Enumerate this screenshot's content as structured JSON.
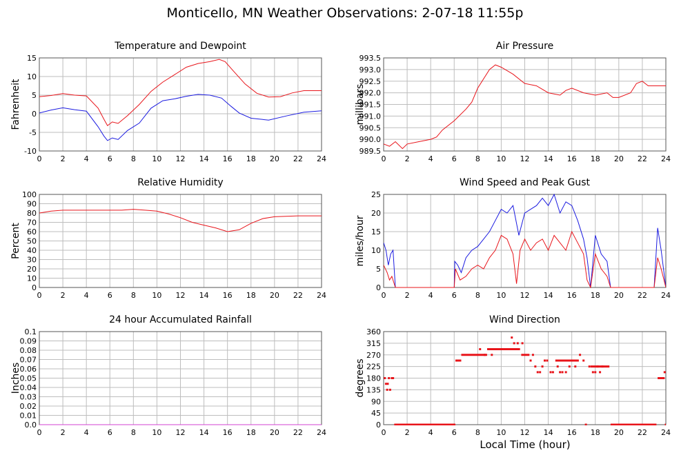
{
  "page": {
    "title": "Monticello, MN Weather Observations: 2-07-18 11:55p",
    "x_caption": "Local Time (hour)"
  },
  "colors": {
    "red": "#e8141a",
    "blue": "#1a1ae0",
    "grid": "#bdbdbd",
    "magenta": "#d040d0"
  },
  "chart_data": [
    {
      "id": "temp",
      "type": "line",
      "title": "Temperature and Dewpoint",
      "ylabel": "Fahrenheit",
      "xlim": [
        0,
        24
      ],
      "ylim": [
        -10,
        15
      ],
      "xticks": [
        0,
        2,
        4,
        6,
        8,
        10,
        12,
        14,
        16,
        18,
        20,
        22,
        24
      ],
      "yticks": [
        -10,
        -5,
        0,
        5,
        10,
        15
      ],
      "grid": true,
      "series": [
        {
          "color": "red",
          "x": [
            0,
            1,
            2,
            3,
            4,
            5,
            5.5,
            5.8,
            6.2,
            6.7,
            7.5,
            8.5,
            9.5,
            10.5,
            11.5,
            12.5,
            13.5,
            14.5,
            15.3,
            15.8,
            16.5,
            17.5,
            18.5,
            19.5,
            20.5,
            21.5,
            22.5,
            24
          ],
          "y": [
            4.6,
            4.9,
            5.4,
            5,
            4.8,
            1.5,
            -1.5,
            -3.2,
            -2.2,
            -2.6,
            -0.5,
            2.5,
            6,
            8.5,
            10.5,
            12.5,
            13.5,
            14,
            14.6,
            14,
            11.5,
            8,
            5.5,
            4.5,
            4.6,
            5.6,
            6.2,
            6.2
          ]
        },
        {
          "color": "blue",
          "x": [
            0,
            1,
            2,
            3,
            4,
            5,
            5.5,
            5.8,
            6.2,
            6.7,
            7.5,
            8.5,
            9.5,
            10.5,
            11.5,
            12.5,
            13.5,
            14.5,
            15.5,
            16.3,
            17,
            18,
            19.5,
            21,
            22.5,
            24
          ],
          "y": [
            0.2,
            1,
            1.6,
            1.1,
            0.7,
            -3.5,
            -6,
            -7.2,
            -6.5,
            -6.9,
            -4.5,
            -2.5,
            1.5,
            3.5,
            4,
            4.7,
            5.2,
            5,
            4.2,
            2,
            0.2,
            -1.2,
            -1.7,
            -0.6,
            0.4,
            0.8
          ]
        }
      ]
    },
    {
      "id": "pressure",
      "type": "line",
      "title": "Air Pressure",
      "ylabel": "millibars",
      "xlim": [
        0,
        24
      ],
      "ylim": [
        989.5,
        993.5
      ],
      "xticks": [
        0,
        2,
        4,
        6,
        8,
        10,
        12,
        14,
        16,
        18,
        20,
        22,
        24
      ],
      "yticks": [
        "989.5",
        "990.0",
        "990.5",
        "991.0",
        "991.5",
        "992.0",
        "992.5",
        "993.0",
        "993.5"
      ],
      "grid": true,
      "series": [
        {
          "color": "red",
          "x": [
            0,
            0.5,
            1,
            1.6,
            2,
            3,
            4,
            4.5,
            5,
            6,
            7,
            7.5,
            8,
            9,
            9.5,
            10,
            11,
            12,
            13,
            14,
            15,
            15.5,
            16,
            17,
            18,
            19,
            19.5,
            20,
            21,
            21.5,
            22,
            22.5,
            23,
            24
          ],
          "y": [
            989.8,
            989.7,
            989.9,
            989.6,
            989.8,
            989.9,
            990.0,
            990.1,
            990.4,
            990.8,
            991.3,
            991.6,
            992.2,
            993.0,
            993.2,
            993.1,
            992.8,
            992.4,
            992.3,
            992.0,
            991.9,
            992.1,
            992.2,
            992.0,
            991.9,
            992.0,
            991.8,
            991.8,
            992.0,
            992.4,
            992.5,
            992.3,
            992.3,
            992.3
          ]
        }
      ]
    },
    {
      "id": "humidity",
      "type": "line",
      "title": "Relative Humidity",
      "ylabel": "Percent",
      "xlim": [
        0,
        24
      ],
      "ylim": [
        0,
        100
      ],
      "xticks": [
        0,
        2,
        4,
        6,
        8,
        10,
        12,
        14,
        16,
        18,
        20,
        22,
        24
      ],
      "yticks": [
        0,
        10,
        20,
        30,
        40,
        50,
        60,
        70,
        80,
        90,
        100
      ],
      "grid": true,
      "series": [
        {
          "color": "red",
          "x": [
            0,
            1,
            2,
            4,
            6,
            7,
            8,
            9,
            10,
            11,
            12,
            13,
            14,
            15,
            16,
            17,
            18,
            19,
            20,
            22,
            24
          ],
          "y": [
            80,
            82,
            83,
            83,
            83,
            83,
            84,
            83,
            82,
            79,
            75,
            70,
            67,
            64,
            60,
            62,
            69,
            74,
            76,
            77,
            77
          ]
        }
      ]
    },
    {
      "id": "wind",
      "type": "line",
      "title": "Wind Speed and Peak Gust",
      "ylabel": "miles/hour",
      "xlim": [
        0,
        24
      ],
      "ylim": [
        0,
        25
      ],
      "xticks": [
        0,
        2,
        4,
        6,
        8,
        10,
        12,
        14,
        16,
        18,
        20,
        22,
        24
      ],
      "yticks": [
        0,
        5,
        10,
        15,
        20,
        25
      ],
      "grid": true,
      "series": [
        {
          "color": "blue",
          "x": [
            0,
            0.2,
            0.4,
            0.6,
            0.8,
            1,
            6,
            6.05,
            6.3,
            6.6,
            7,
            7.5,
            8,
            8.5,
            9,
            9.5,
            10,
            10.5,
            11,
            11.5,
            12,
            12.5,
            13,
            13.5,
            14,
            14.5,
            15,
            15.5,
            16,
            16.5,
            17,
            17.3,
            17.6,
            18,
            18.5,
            19,
            19.3,
            19.5,
            23,
            23.3,
            23.6,
            24
          ],
          "y": [
            12,
            10,
            6,
            9,
            10,
            0,
            0,
            7,
            6,
            4,
            8,
            10,
            11,
            13,
            15,
            18,
            21,
            20,
            22,
            14,
            20,
            21,
            22,
            24,
            22,
            25,
            20,
            23,
            22,
            18,
            13,
            8,
            0,
            14,
            9,
            7,
            0,
            0,
            0,
            16,
            10,
            0
          ]
        },
        {
          "color": "red",
          "x": [
            0,
            0.3,
            0.5,
            0.7,
            1,
            6,
            6.1,
            6.5,
            7,
            7.5,
            8,
            8.5,
            9,
            9.5,
            10,
            10.5,
            11,
            11.3,
            11.6,
            12,
            12.5,
            13,
            13.5,
            14,
            14.5,
            15,
            15.5,
            16,
            16.5,
            17,
            17.3,
            17.6,
            18,
            18.5,
            19,
            19.3,
            23,
            23.3,
            23.6,
            24
          ],
          "y": [
            6,
            4,
            2,
            3,
            0,
            0,
            5,
            2,
            3,
            5,
            6,
            5,
            8,
            10,
            14,
            13,
            9,
            1,
            10,
            13,
            10,
            12,
            13,
            10,
            14,
            12,
            10,
            15,
            12,
            9,
            2,
            0,
            9,
            5,
            3,
            0,
            0,
            8,
            5,
            0
          ]
        }
      ]
    },
    {
      "id": "rain",
      "type": "line",
      "title": "24 hour Accumulated Rainfall",
      "ylabel": "Inches",
      "xlim": [
        0,
        24
      ],
      "ylim": [
        0,
        0.1
      ],
      "xticks": [
        0,
        2,
        4,
        6,
        8,
        10,
        12,
        14,
        16,
        18,
        20,
        22,
        24
      ],
      "yticks": [
        "0.0",
        "0.01",
        "0.02",
        "0.03",
        "0.04",
        "0.05",
        "0.06",
        "0.07",
        "0.08",
        "0.09",
        "0.1"
      ],
      "grid": true,
      "series": [
        {
          "color": "magenta",
          "x": [
            0,
            24
          ],
          "y": [
            0,
            0
          ]
        }
      ]
    },
    {
      "id": "direction",
      "type": "scatter",
      "title": "Wind Direction",
      "ylabel": "degrees",
      "xlim": [
        0,
        24
      ],
      "ylim": [
        0,
        360
      ],
      "xticks": [
        0,
        2,
        4,
        6,
        8,
        10,
        12,
        14,
        16,
        18,
        20,
        22,
        24
      ],
      "yticks": [
        0,
        45,
        90,
        135,
        180,
        225,
        270,
        315,
        360
      ],
      "grid": true,
      "segments": [
        {
          "x0": 0.9,
          "x1": 6.1,
          "y": 0
        },
        {
          "x0": 6.1,
          "x1": 6.6,
          "y": 248
        },
        {
          "x0": 6.6,
          "x1": 8.8,
          "y": 270
        },
        {
          "x0": 8.8,
          "x1": 11.6,
          "y": 292
        },
        {
          "x0": 11.7,
          "x1": 12.4,
          "y": 270
        },
        {
          "x0": 14.6,
          "x1": 16.6,
          "y": 248
        },
        {
          "x0": 17.6,
          "x1": 19.2,
          "y": 225
        },
        {
          "x0": 19.3,
          "x1": 23.2,
          "y": 0
        },
        {
          "x0": 23.3,
          "x1": 23.9,
          "y": 180
        }
      ],
      "points": [
        [
          0.1,
          180
        ],
        [
          0.2,
          158
        ],
        [
          0.3,
          135
        ],
        [
          0.35,
          158
        ],
        [
          0.45,
          180
        ],
        [
          0.55,
          135
        ],
        [
          0.7,
          180
        ],
        [
          0.8,
          180
        ],
        [
          8.2,
          292
        ],
        [
          8.6,
          270
        ],
        [
          9.2,
          270
        ],
        [
          10.4,
          292
        ],
        [
          10.9,
          337
        ],
        [
          11.1,
          315
        ],
        [
          11.4,
          315
        ],
        [
          11.8,
          315
        ],
        [
          12.5,
          248
        ],
        [
          12.7,
          270
        ],
        [
          12.9,
          225
        ],
        [
          13.1,
          203
        ],
        [
          13.3,
          203
        ],
        [
          13.5,
          225
        ],
        [
          13.7,
          248
        ],
        [
          13.9,
          248
        ],
        [
          14.2,
          203
        ],
        [
          14.4,
          203
        ],
        [
          14.8,
          225
        ],
        [
          15.0,
          203
        ],
        [
          15.2,
          203
        ],
        [
          15.5,
          203
        ],
        [
          15.8,
          225
        ],
        [
          16.0,
          248
        ],
        [
          16.3,
          225
        ],
        [
          16.7,
          270
        ],
        [
          17.0,
          248
        ],
        [
          17.2,
          0
        ],
        [
          17.5,
          225
        ],
        [
          17.8,
          203
        ],
        [
          18.0,
          203
        ],
        [
          18.2,
          225
        ],
        [
          18.4,
          203
        ],
        [
          18.6,
          225
        ],
        [
          23.9,
          203
        ],
        [
          24.0,
          0
        ]
      ]
    }
  ]
}
